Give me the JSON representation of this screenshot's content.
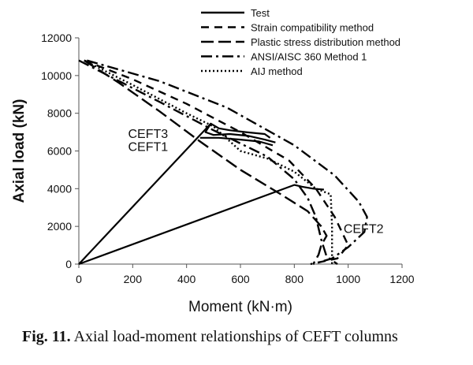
{
  "chart_data": {
    "type": "line",
    "xlabel": "Moment (kN·m)",
    "ylabel": "Axial load (kN)",
    "xlim": [
      0,
      1200
    ],
    "ylim": [
      0,
      12000
    ],
    "xticks": [
      0,
      200,
      400,
      600,
      800,
      1000,
      1200
    ],
    "yticks": [
      0,
      2000,
      4000,
      6000,
      8000,
      10000,
      12000
    ],
    "grid": false,
    "legend_position": "top-right",
    "series": [
      {
        "name": "Test",
        "style": "solid",
        "segments": [
          [
            [
              0,
              0
            ],
            [
              490,
              7450
            ],
            [
              520,
              7200
            ],
            [
              560,
              7100
            ],
            [
              620,
              7000
            ],
            [
              690,
              6900
            ],
            [
              710,
              6700
            ]
          ],
          [
            [
              490,
              7450
            ],
            [
              470,
              7000
            ],
            [
              500,
              6850
            ],
            [
              560,
              6900
            ],
            [
              630,
              6800
            ],
            [
              690,
              6600
            ],
            [
              730,
              6450
            ]
          ],
          [
            [
              450,
              6700
            ],
            [
              520,
              6700
            ],
            [
              600,
              6600
            ],
            [
              670,
              6500
            ],
            [
              720,
              6300
            ]
          ],
          [
            [
              0,
              0
            ],
            [
              800,
              4200
            ],
            [
              830,
              4100
            ],
            [
              870,
              4000
            ],
            [
              910,
              3950
            ]
          ]
        ]
      },
      {
        "name": "Strain compatibility method",
        "style": "dash",
        "segments": [
          [
            [
              20,
              10800
            ],
            [
              200,
              9800
            ],
            [
              400,
              8500
            ],
            [
              600,
              7000
            ],
            [
              780,
              5500
            ],
            [
              880,
              4000
            ],
            [
              950,
              2500
            ],
            [
              1000,
              1000
            ],
            [
              960,
              300
            ],
            [
              860,
              0
            ]
          ]
        ]
      },
      {
        "name": "Plastic stress distribution method",
        "style": "longdash",
        "segments": [
          [
            [
              20,
              10800
            ],
            [
              150,
              9600
            ],
            [
              300,
              8100
            ],
            [
              450,
              6500
            ],
            [
              600,
              5000
            ],
            [
              750,
              3700
            ],
            [
              850,
              2800
            ],
            [
              900,
              2000
            ],
            [
              920,
              1500
            ],
            [
              900,
              1000
            ],
            [
              890,
              500
            ],
            [
              870,
              0
            ]
          ]
        ]
      },
      {
        "name": "ANSI/AISC 360 Method 1",
        "style": "dashdot",
        "segments": [
          [
            [
              0,
              10800
            ],
            [
              150,
              9700
            ],
            [
              300,
              8600
            ],
            [
              500,
              7100
            ],
            [
              700,
              5700
            ],
            [
              800,
              4500
            ],
            [
              850,
              3500
            ],
            [
              880,
              2500
            ],
            [
              900,
              1300
            ],
            [
              920,
              400
            ],
            [
              960,
              0
            ]
          ]
        ]
      },
      {
        "name": "AIJ method",
        "style": "dotted",
        "segments": [
          [
            [
              20,
              10800
            ],
            [
              200,
              9500
            ],
            [
              400,
              8000
            ],
            [
              500,
              7300
            ],
            [
              600,
              6000
            ],
            [
              700,
              5600
            ],
            [
              800,
              4900
            ],
            [
              880,
              4000
            ],
            [
              935,
              3700
            ],
            [
              940,
              2000
            ],
            [
              940,
              0
            ]
          ]
        ]
      },
      {
        "name": "ANSI/AISC 360 Method 1 (outer)",
        "style": "dashdot",
        "segments": [
          [
            [
              30,
              10800
            ],
            [
              300,
              9700
            ],
            [
              550,
              8300
            ],
            [
              800,
              6300
            ],
            [
              950,
              4700
            ],
            [
              1040,
              3300
            ],
            [
              1070,
              2500
            ],
            [
              1060,
              1700
            ],
            [
              1000,
              900
            ],
            [
              940,
              300
            ],
            [
              870,
              0
            ]
          ]
        ]
      }
    ],
    "legend": [
      {
        "label": "Test",
        "style": "solid"
      },
      {
        "label": "Strain compatibility method",
        "style": "dash"
      },
      {
        "label": "Plastic stress distribution method",
        "style": "longdash"
      },
      {
        "label": "ANSI/AISC 360 Method 1",
        "style": "dashdot"
      },
      {
        "label": "AIJ method",
        "style": "dotted"
      }
    ],
    "annotations": [
      {
        "text": "CEFT3",
        "x": 60,
        "y": 6950
      },
      {
        "text": "CEFT1",
        "x": 60,
        "y": 6250
      },
      {
        "text": "CEFT2",
        "x": 860,
        "y": 1900
      }
    ]
  },
  "caption": {
    "label": "Fig. 11.",
    "text": "Axial load-moment relationships of CEFT columns"
  }
}
